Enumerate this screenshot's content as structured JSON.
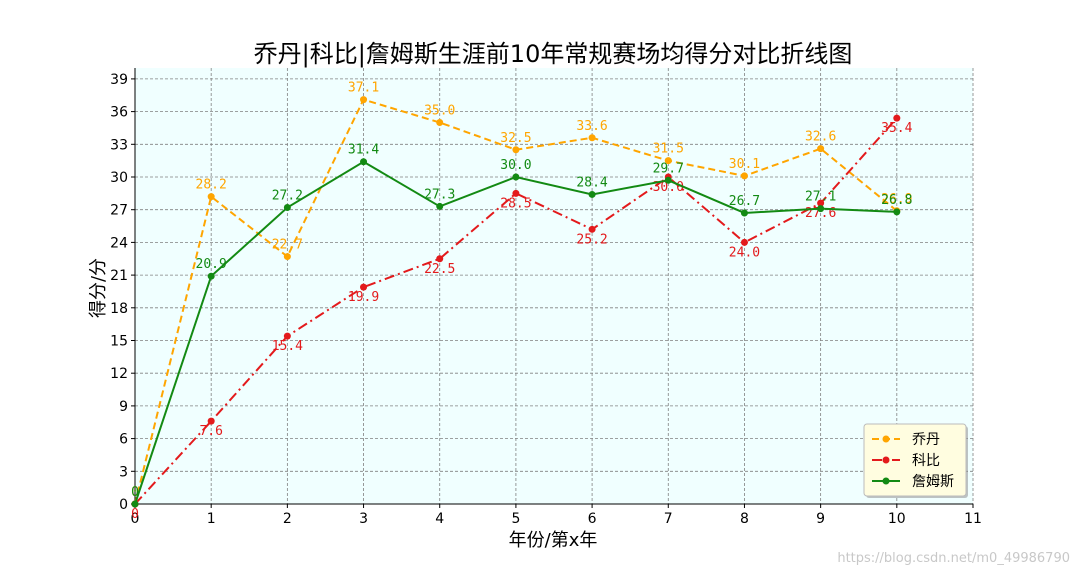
{
  "chart_data": {
    "type": "line",
    "title": "乔丹|科比|詹姆斯生涯前10年常规赛场均得分对比折线图",
    "xlabel": "年份/第x年",
    "ylabel": "得分/分",
    "x": [
      0,
      1,
      2,
      3,
      4,
      5,
      6,
      7,
      8,
      9,
      10
    ],
    "xlim": [
      0,
      11
    ],
    "ylim": [
      0,
      40
    ],
    "xticks": [
      0,
      1,
      2,
      3,
      4,
      5,
      6,
      7,
      8,
      9,
      10,
      11
    ],
    "yticks": [
      0,
      3,
      6,
      9,
      12,
      15,
      18,
      21,
      24,
      27,
      30,
      33,
      36,
      39
    ],
    "grid": true,
    "legend_position": "bottom-right",
    "background": "#f0ffff",
    "series": [
      {
        "name": "乔丹",
        "color": "#ffa500",
        "linestyle": "dashed",
        "values": [
          0,
          28.2,
          22.7,
          37.1,
          35.0,
          32.5,
          33.6,
          31.5,
          30.1,
          32.6,
          26.9
        ],
        "labels": [
          "0",
          "28.2",
          "22.7",
          "37.1",
          "35.0",
          "32.5",
          "33.6",
          "31.5",
          "30.1",
          "32.6",
          "26.9"
        ]
      },
      {
        "name": "科比",
        "color": "#e31a1c",
        "linestyle": "dashdot",
        "values": [
          0,
          7.6,
          15.4,
          19.9,
          22.5,
          28.5,
          25.2,
          30.0,
          24.0,
          27.6,
          35.4
        ],
        "labels": [
          "0",
          "7.6",
          "15.4",
          "19.9",
          "22.5",
          "28.5",
          "25.2",
          "30.0",
          "24.0",
          "27.6",
          "35.4"
        ]
      },
      {
        "name": "詹姆斯",
        "color": "#138a13",
        "linestyle": "solid",
        "values": [
          0,
          20.9,
          27.2,
          31.4,
          27.3,
          30.0,
          28.4,
          29.7,
          26.7,
          27.1,
          26.8
        ],
        "labels": [
          "0",
          "20.9",
          "27.2",
          "31.4",
          "27.3",
          "30.0",
          "28.4",
          "29.7",
          "26.7",
          "27.1",
          "26.8"
        ]
      }
    ]
  },
  "watermark": "https://blog.csdn.net/m0_49986790"
}
